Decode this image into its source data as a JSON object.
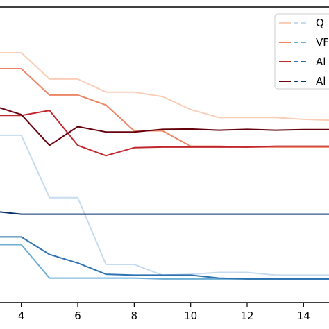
{
  "chart_data": {
    "type": "line",
    "xlim": [
      3,
      15
    ],
    "ylim": [
      0,
      100
    ],
    "x_ticks": [
      4,
      6,
      8,
      10,
      12,
      14
    ],
    "x_tick_labels": [
      "4",
      "6",
      "8",
      "10",
      "12",
      "14"
    ],
    "grid": false,
    "legend_position": "top-right",
    "x": [
      3,
      4,
      5,
      6,
      7,
      8,
      9,
      10,
      11,
      12,
      13,
      14,
      15
    ],
    "series": [
      {
        "name": "Q",
        "style": "solid",
        "color": "#fbcdb7",
        "values": [
          84.5,
          84.5,
          75.6,
          75.6,
          71.2,
          71.2,
          69.7,
          65.3,
          62.6,
          62.6,
          62.6,
          62.0,
          61.7
        ]
      },
      {
        "name": "VF",
        "style": "solid",
        "color": "#ec8466",
        "values": [
          79.1,
          79.1,
          70.2,
          70.2,
          66.8,
          58.1,
          58.1,
          52.9,
          52.9,
          52.6,
          52.6,
          52.6,
          52.6
        ]
      },
      {
        "name": "Al",
        "style": "solid",
        "color": "#c0272c",
        "values": [
          63.3,
          63.3,
          65.0,
          53.2,
          49.7,
          52.4,
          52.6,
          52.6,
          52.6,
          52.6,
          52.9,
          52.9,
          52.9
        ]
      },
      {
        "name": "Al",
        "style": "solid",
        "color": "#67000d",
        "values": [
          66.6,
          63.6,
          53.2,
          59.5,
          57.7,
          57.7,
          58.6,
          58.7,
          58.3,
          58.6,
          58.3,
          58.5,
          58.5
        ]
      },
      {
        "name": "",
        "style": "solid",
        "color": "#c6dbef",
        "values": [
          56.6,
          56.6,
          35.5,
          35.5,
          12.9,
          12.9,
          9.3,
          9.6,
          10.2,
          10.2,
          9.3,
          9.3,
          9.3
        ]
      },
      {
        "name": "",
        "style": "solid",
        "color": "#6baed6",
        "values": [
          19.6,
          19.6,
          8.3,
          8.3,
          8.3,
          8.3,
          8.0,
          8.0,
          8.0,
          8.0,
          8.0,
          8.0,
          8.0
        ]
      },
      {
        "name": "",
        "style": "solid",
        "color": "#2c72b0",
        "values": [
          22.2,
          22.2,
          16.3,
          13.4,
          9.6,
          9.3,
          9.3,
          9.3,
          8.3,
          8.0,
          8.0,
          8.0,
          8.0
        ]
      },
      {
        "name": "",
        "style": "solid",
        "color": "#08306b",
        "values": [
          30.9,
          29.9,
          29.9,
          29.9,
          29.9,
          29.9,
          29.9,
          29.9,
          29.9,
          29.9,
          29.9,
          29.9,
          29.9
        ]
      }
    ],
    "legend": [
      {
        "label": "Q",
        "solid_color": "#fbcdb7",
        "dashed_color": "#c6dbef"
      },
      {
        "label": "VF",
        "solid_color": "#ec8466",
        "dashed_color": "#6baed6"
      },
      {
        "label": "Al",
        "solid_color": "#c0272c",
        "dashed_color": "#2c72b0"
      },
      {
        "label": "Al",
        "solid_color": "#67000d",
        "dashed_color": "#08306b"
      }
    ]
  }
}
